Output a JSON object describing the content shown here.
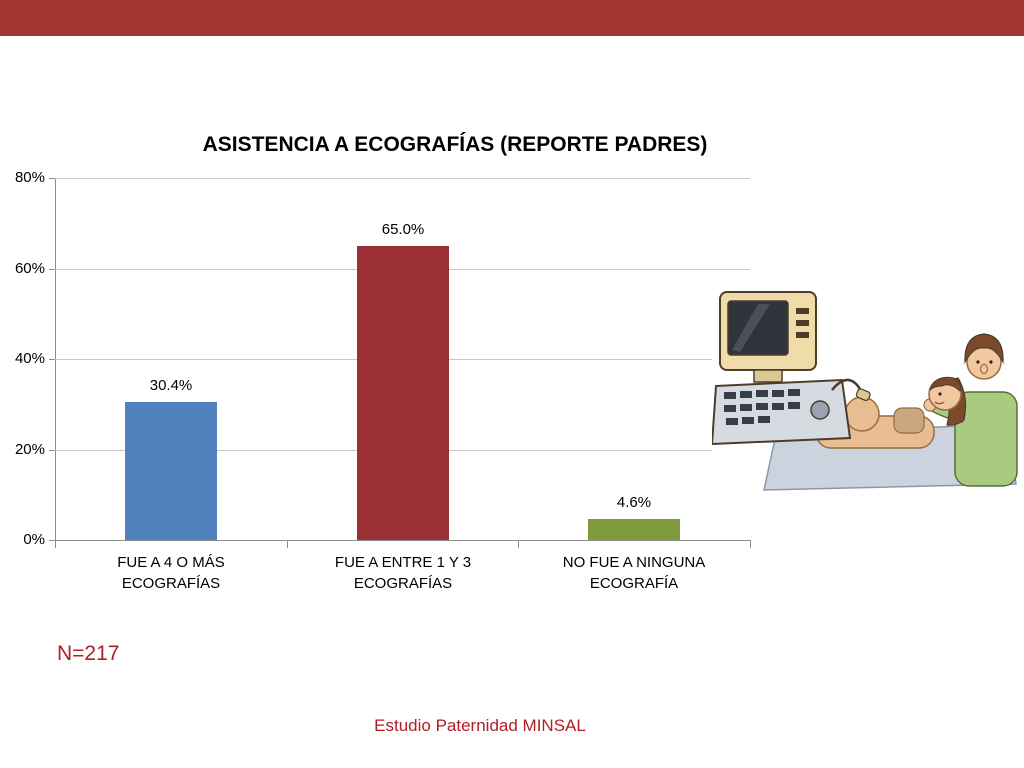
{
  "slide": {
    "banner_color": "#A3362E",
    "accent_text_color": "#B01E28",
    "n_label": "N=217",
    "footer": "Estudio Paternidad MINSAL"
  },
  "chart_data": {
    "type": "bar",
    "title": "ASISTENCIA A ECOGRAFÍAS (REPORTE PADRES)",
    "categories": [
      "FUE A 4 O MÁS ECOGRAFÍAS",
      "FUE A ENTRE 1 Y 3 ECOGRAFÍAS",
      "NO FUE A NINGUNA ECOGRAFÍA"
    ],
    "values": [
      30.4,
      65.0,
      4.6
    ],
    "value_labels": [
      "30.4%",
      "65.0%",
      "4.6%"
    ],
    "bar_colors": [
      "#4F81BD",
      "#9A2F35",
      "#7F9B3E"
    ],
    "ylim": [
      0,
      80
    ],
    "ytick_values": [
      0,
      20,
      40,
      60,
      80
    ],
    "ytick_labels": [
      "0%",
      "20%",
      "40%",
      "60%",
      "80%"
    ],
    "grid": true,
    "legend": false,
    "xlabel": "",
    "ylabel": ""
  },
  "illustration": {
    "name": "ultrasound-exam-cartoon"
  }
}
